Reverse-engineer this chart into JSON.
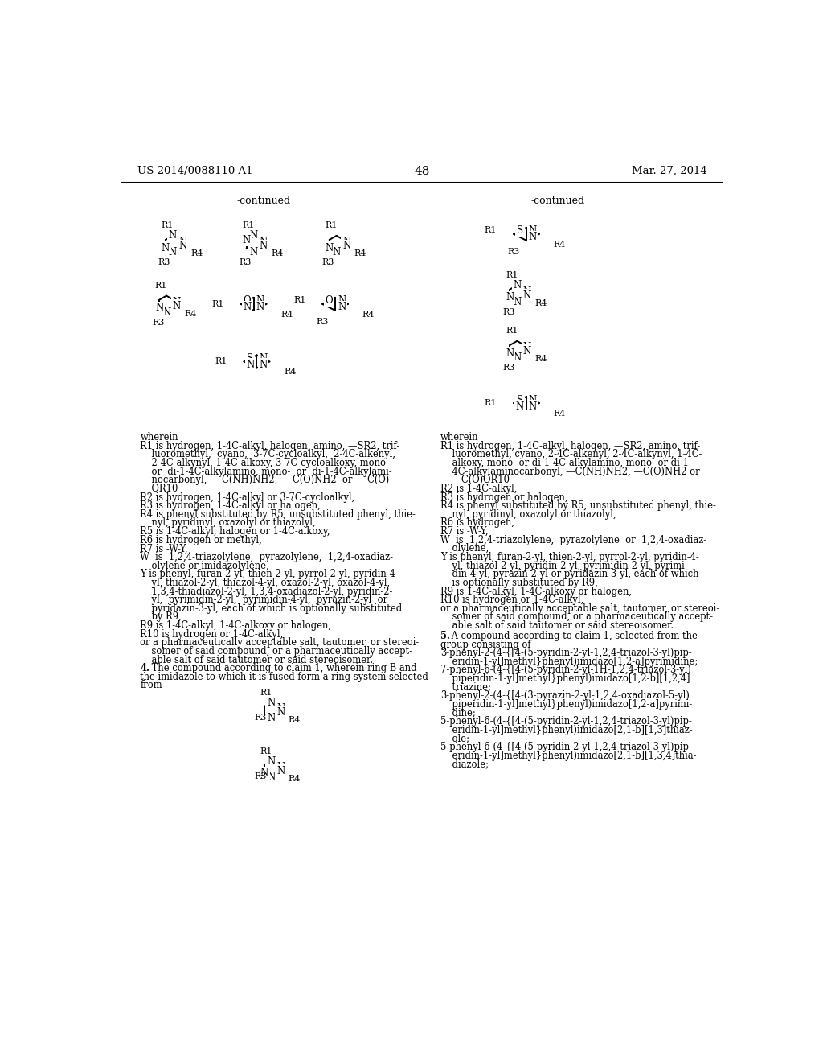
{
  "page_number": "48",
  "patent_number": "US 2014/0088110 A1",
  "patent_date": "Mar. 27, 2014",
  "left_continued_label": "-continued",
  "right_continued_label": "-continued",
  "left_wherein_text": [
    [
      "wherein",
      false
    ],
    [
      "R1 is hydrogen, 1-4C-alkyl, halogen, amino, —SR2, trif-",
      false
    ],
    [
      "    luoromethyl,  cyano,  3-7C-cycloalkyl,  2-4C-alkenyl,",
      false
    ],
    [
      "    2-4C-alkynyl, 1-4C-alkoxy, 3-7C-cycloalkoxy, mono-",
      false
    ],
    [
      "    or  di-1-4C-alkylamino, mono-  or  di-1-4C-alkylami-",
      false
    ],
    [
      "    nocarbonyl,  —C(NH)NH2,  —C(O)NH2  or  —C(O)",
      false
    ],
    [
      "    OR10",
      false
    ],
    [
      "R2 is hydrogen, 1-4C-alkyl or 3-7C-cycloalkyl,",
      false
    ],
    [
      "R3 is hydrogen, 1-4C-alkyl or halogen,",
      false
    ],
    [
      "R4 is phenyl substituted by R5, unsubstituted phenyl, thie-",
      false
    ],
    [
      "    nyl, pyridinyl, oxazolyl or thiazolyl,",
      false
    ],
    [
      "R5 is 1-4C-alkyl, halogen or 1-4C-alkoxy,",
      false
    ],
    [
      "R6 is hydrogen or methyl,",
      false
    ],
    [
      "R7 is -W-Y,",
      false
    ],
    [
      "W  is  1,2,4-triazolylene,  pyrazolylene,  1,2,4-oxadiaz-",
      false
    ],
    [
      "    olylene or imidazolylene,",
      false
    ],
    [
      "Y is phenyl, furan-2-yl, thien-2-yl, pyrrol-2-yl, pyridin-4-",
      false
    ],
    [
      "    yl, thiazol-2-yl, thiazol-4-yl, oxazol-2-yl, oxazol-4-yl,",
      false
    ],
    [
      "    1,3,4-thiadiazol-2-yl, 1,3,4-oxadiazol-2-yl, pyridin-2-",
      false
    ],
    [
      "    yl,  pyrimidin-2-yl,  pyrimidin-4-yl,  pyrazin-2-yl  or",
      false
    ],
    [
      "    pyridazin-3-yl, each of which is optionally substituted",
      false
    ],
    [
      "    by R9,",
      false
    ],
    [
      "R9 is 1-4C-alkyl, 1-4C-alkoxy or halogen,",
      false
    ],
    [
      "R10 is hydrogen or 1-4C-alkyl,",
      false
    ],
    [
      "or a pharmaceutically acceptable salt, tautomer, or stereoi-",
      false
    ],
    [
      "    somer of said compound, or a pharmaceutically accept-",
      false
    ],
    [
      "    able salt of said tautomer or said stereoisomer.",
      false
    ],
    [
      "4. The compound according to claim 1, wherein ring B and",
      true
    ],
    [
      "the imidazole to which it is fused form a ring system selected",
      false
    ],
    [
      "from",
      false
    ]
  ],
  "right_wherein_text": [
    [
      "wherein",
      false
    ],
    [
      "R1 is hydrogen, 1-4C-alkyl, halogen, —SR2, amino, trif-",
      false
    ],
    [
      "    luoromethyl, cyano, 2-4C-alkenyl, 2-4C-alkynyl, 1-4C-",
      false
    ],
    [
      "    alkoxy, mono- or di-1-4C-alkylamino, mono- or di-1-",
      false
    ],
    [
      "    4C-alkylaminocarbonyl, —C(NH)NH2, —C(O)NH2 or",
      false
    ],
    [
      "    —C(O)OR10",
      false
    ],
    [
      "R2 is 1-4C-alkyl,",
      false
    ],
    [
      "R3 is hydrogen or halogen,",
      false
    ],
    [
      "R4 is phenyl substituted by R5, unsubstituted phenyl, thie-",
      false
    ],
    [
      "    nyl, pyridinyl, oxazolyl or thiazolyl,",
      false
    ],
    [
      "R6 is hydrogen,",
      false
    ],
    [
      "R7 is -W-Y,",
      false
    ],
    [
      "W  is  1,2,4-triazolylene,  pyrazolylene  or  1,2,4-oxadiaz-",
      false
    ],
    [
      "    olylene,",
      false
    ],
    [
      "Y is phenyl, furan-2-yl, thien-2-yl, pyrrol-2-yl, pyridin-4-",
      false
    ],
    [
      "    yl, thiazol-2-yl, pyridin-2-yl, pyrimidin-2-yl, pyrimi-",
      false
    ],
    [
      "    din-4-yl, pyrazin-2-yl or pyridazin-3-yl, each of which",
      false
    ],
    [
      "    is optionally substituted by R9,",
      false
    ],
    [
      "R9 is 1-4C-alkyl, 1-4C-alkoxy or halogen,",
      false
    ],
    [
      "R10 is hydrogen or 1-4C-alkyl,",
      false
    ],
    [
      "or a pharmaceutically acceptable salt, tautomer, or stereoi-",
      false
    ],
    [
      "    somer of said compound, or a pharmaceutically accept-",
      false
    ],
    [
      "    able salt of said tautomer or said stereoisomer.",
      false
    ]
  ],
  "right_claim5_text": [
    [
      "5. A compound according to claim 1, selected from the",
      true
    ],
    [
      "group consisting of",
      false
    ],
    [
      "3-phenyl-2-(4-{[4-(5-pyridin-2-yl-1,2,4-triazol-3-yl)pip-",
      false
    ],
    [
      "    eridin-1-yl]methyl}phenyl)imidazo[1,2-a]pyrimidine;",
      false
    ],
    [
      "7-phenyl-6-(4-{[4-(5-pyridin-2-yl-1H-1,2,4-triazol-3-yl)",
      false
    ],
    [
      "    piperidin-1-yl]methyl}phenyl)imidazo[1,2-b][1,2,4]",
      false
    ],
    [
      "    triazine;",
      false
    ],
    [
      "3-phenyl-2-(4-{[4-(3-pyrazin-2-yl-1,2,4-oxadiazol-5-yl)",
      false
    ],
    [
      "    piperidin-1-yl]methyl}phenyl)imidazo[1,2-a]pyrimi-",
      false
    ],
    [
      "    dine;",
      false
    ],
    [
      "5-phenyl-6-(4-{[4-(5-pyridin-2-yl-1,2,4-triazol-3-yl)pip-",
      false
    ],
    [
      "    eridin-1-yl]methyl}phenyl)imidazo[2,1-b][1,3]thiaz-",
      false
    ],
    [
      "    ole;",
      false
    ],
    [
      "5-phenyl-6-(4-{[4-(5-pyridin-2-yl-1,2,4-triazol-3-yl)pip-",
      false
    ],
    [
      "    eridin-1-yl]methyl}phenyl)imidazo[2,1-b][1,3,4]thia-",
      false
    ],
    [
      "    diazole;",
      false
    ]
  ]
}
